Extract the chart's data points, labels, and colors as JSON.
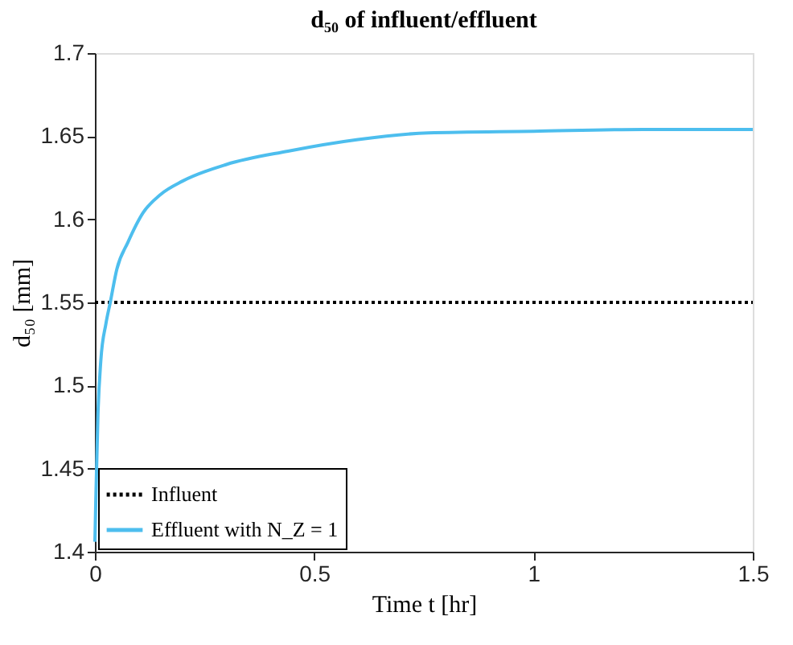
{
  "chart_data": {
    "type": "line",
    "title": "d₅₀ of influent/effluent",
    "xlabel": "Time t [hr]",
    "ylabel": "d₅₀ [mm]",
    "xlim": [
      0,
      1.5
    ],
    "xticks": [
      0,
      0.5,
      1,
      1.5
    ],
    "ylim": [
      1.4,
      1.7
    ],
    "yticks": [
      1.4,
      1.45,
      1.5,
      1.55,
      1.6,
      1.65,
      1.7
    ],
    "grid": false,
    "legend": "bottom left",
    "marker": "none",
    "series": [
      {
        "name": "Influent",
        "color": "#000000",
        "line_style": "dotted",
        "x": [
          0,
          1.5
        ],
        "values": [
          1.55,
          1.55
        ]
      },
      {
        "name": "Effluent with N_Z = 1",
        "color": "#4dbeee",
        "line_style": "solid",
        "x": [
          0,
          0.002,
          0.007,
          0.0135,
          0.025,
          0.035,
          0.05,
          0.075,
          0.11,
          0.15,
          0.2,
          0.3,
          0.44,
          0.6,
          0.76,
          1.0,
          1.25,
          1.5
        ],
        "values": [
          1.406,
          1.43,
          1.483,
          1.515,
          1.537,
          1.55,
          1.57,
          1.586,
          1.604,
          1.615,
          1.623,
          1.633,
          1.641,
          1.648,
          1.652,
          1.653,
          1.654,
          1.654
        ]
      }
    ]
  }
}
